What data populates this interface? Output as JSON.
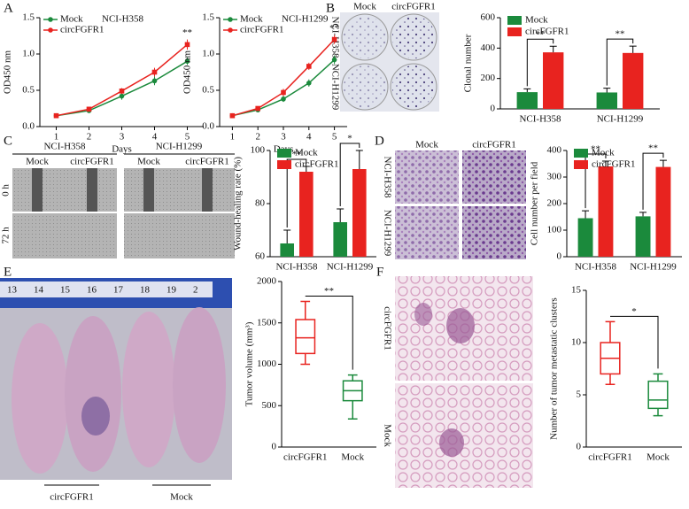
{
  "figure": {
    "panel_labels": [
      "A",
      "B",
      "C",
      "D",
      "E",
      "F"
    ],
    "B_images": {
      "columns": [
        "Mock",
        "circFGFR1"
      ],
      "rows": [
        "NCI-H358",
        "NCI-H1299"
      ]
    },
    "C_images": {
      "groups": [
        "NCI-H358",
        "NCI-H1299"
      ],
      "columns": [
        "Mock",
        "circFGFR1",
        "Mock",
        "circFGFR1"
      ],
      "rows": [
        "0 h",
        "72 h"
      ]
    },
    "D_images": {
      "columns": [
        "Mock",
        "circFGFR1"
      ],
      "rows": [
        "NCI-H358",
        "NCI-H1299"
      ]
    },
    "E_photo": {
      "ruler": [
        "13",
        "14",
        "15",
        "16",
        "17",
        "18",
        "19",
        "2"
      ],
      "groups": [
        "circFGFR1",
        "Mock"
      ]
    },
    "F_images": {
      "rows": [
        "circFGFR1",
        "Mock"
      ]
    }
  },
  "chart_data": [
    {
      "type": "line",
      "ylabel": "OD450 nm",
      "xlabel": "Days",
      "legend_title": "NCI-H358",
      "x": [
        1,
        2,
        3,
        4,
        5
      ],
      "xlim": [
        0.5,
        5.5
      ],
      "xticks": [
        1,
        2,
        3,
        4,
        5
      ],
      "ylim": [
        0,
        1.5
      ],
      "yticks": [
        {
          "value": 0,
          "label": "0.0"
        },
        0.5,
        {
          "value": 1,
          "label": "1.0"
        },
        1.5
      ],
      "series": [
        {
          "name": "Mock",
          "color": "#1b8a3c",
          "values": [
            0.15,
            0.22,
            0.42,
            0.63,
            0.9
          ],
          "errors": [
            0.02,
            0.02,
            0.05,
            0.06,
            0.05
          ]
        },
        {
          "name": "circFGFR1",
          "color": "#e8231f",
          "values": [
            0.15,
            0.24,
            0.49,
            0.75,
            1.13
          ],
          "errors": [
            0.02,
            0.02,
            0.04,
            0.06,
            0.07
          ]
        }
      ],
      "annotation": "**"
    },
    {
      "type": "line",
      "ylabel": "OD450 nm",
      "xlabel": "Days",
      "legend_title": "NCI-H1299",
      "x": [
        1,
        2,
        3,
        4,
        5
      ],
      "xlim": [
        0.5,
        5.5
      ],
      "xticks": [
        1,
        2,
        3,
        4,
        5
      ],
      "ylim": [
        0,
        1.5
      ],
      "yticks": [
        {
          "value": 0,
          "label": "0.0"
        },
        0.5,
        {
          "value": 1,
          "label": "1.0"
        },
        1.5
      ],
      "series": [
        {
          "name": "Mock",
          "color": "#1b8a3c",
          "values": [
            0.15,
            0.23,
            0.38,
            0.6,
            0.92
          ],
          "errors": [
            0.02,
            0.02,
            0.04,
            0.05,
            0.06
          ]
        },
        {
          "name": "circFGFR1",
          "color": "#e8231f",
          "values": [
            0.15,
            0.25,
            0.47,
            0.83,
            1.2
          ],
          "errors": [
            0.02,
            0.03,
            0.05,
            0.05,
            0.06
          ]
        }
      ],
      "annotation": "**"
    },
    {
      "type": "bar",
      "ylabel": "Clonal number",
      "categories": [
        "NCI-H358",
        "NCI-H1299"
      ],
      "ylim": [
        0,
        600
      ],
      "yticks": [
        0,
        200,
        400,
        600
      ],
      "series": [
        {
          "name": "Mock",
          "color": "#1b8a3c",
          "values": [
            110,
            108
          ],
          "errors": [
            22,
            28
          ]
        },
        {
          "name": "circFGFR1",
          "color": "#e8231f",
          "values": [
            372,
            368
          ],
          "errors": [
            40,
            45
          ]
        }
      ],
      "significance": [
        "**",
        "**"
      ]
    },
    {
      "type": "bar",
      "ylabel": "Wound-healing rate (%)",
      "categories": [
        "NCI-H358",
        "NCI-H1299"
      ],
      "ylim": [
        60,
        100
      ],
      "yticks": [
        60,
        80,
        100
      ],
      "series": [
        {
          "name": "Mock",
          "color": "#1b8a3c",
          "values": [
            65,
            73
          ],
          "errors": [
            5,
            5
          ]
        },
        {
          "name": "circFGFR1",
          "color": "#e8231f",
          "values": [
            92,
            93
          ],
          "errors": [
            2,
            7
          ]
        }
      ],
      "significance": [
        "**",
        "*"
      ]
    },
    {
      "type": "bar",
      "ylabel": "Cell number per field",
      "categories": [
        "NCI-H358",
        "NCI-H1299"
      ],
      "ylim": [
        0,
        400
      ],
      "yticks": [
        0,
        100,
        200,
        300,
        400
      ],
      "series": [
        {
          "name": "Mock",
          "color": "#1b8a3c",
          "values": [
            145,
            152
          ],
          "errors": [
            28,
            15
          ]
        },
        {
          "name": "circFGFR1",
          "color": "#e8231f",
          "values": [
            340,
            338
          ],
          "errors": [
            20,
            25
          ]
        }
      ],
      "significance": [
        "**",
        "**"
      ]
    },
    {
      "type": "box",
      "ylabel": "Tumor volume (mm³)",
      "categories": [
        "circFGFR1",
        "Mock"
      ],
      "colors": [
        "#e8231f",
        "#1b8a3c"
      ],
      "boxes": [
        {
          "min": 1000,
          "q1": 1130,
          "median": 1320,
          "q3": 1540,
          "max": 1760
        },
        {
          "min": 340,
          "q1": 560,
          "median": 680,
          "q3": 800,
          "max": 870
        }
      ],
      "ylim": [
        0,
        2000
      ],
      "yticks": [
        0,
        500,
        1000,
        1500,
        2000
      ],
      "significance": "**"
    },
    {
      "type": "box",
      "ylabel": "Number of tumor metastatic clusters",
      "categories": [
        "circFGFR1",
        "Mock"
      ],
      "colors": [
        "#e8231f",
        "#1b8a3c"
      ],
      "boxes": [
        {
          "min": 6,
          "q1": 7,
          "median": 8.5,
          "q3": 10,
          "max": 12
        },
        {
          "min": 3,
          "q1": 3.7,
          "median": 4.5,
          "q3": 6.3,
          "max": 7
        }
      ],
      "ylim": [
        0,
        15
      ],
      "yticks": [
        0,
        5,
        10,
        15
      ],
      "significance": "*"
    }
  ]
}
